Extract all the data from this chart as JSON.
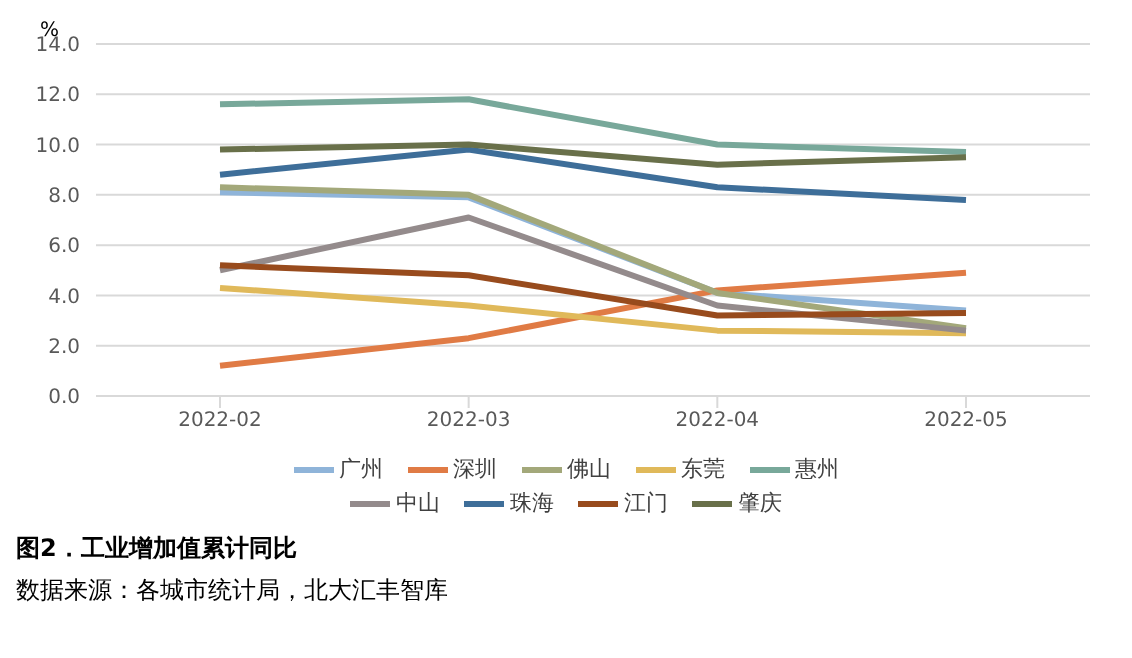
{
  "chart_data": {
    "type": "line",
    "title": "图2．工业增加值累计同比",
    "ylabel": "%",
    "annotations": [
      "数据来源：各城市统计局，北大汇丰智库"
    ],
    "categories": [
      "2022-02",
      "2022-03",
      "2022-04",
      "2022-05"
    ],
    "series": [
      {
        "name": "广州",
        "color": "#8fb4d9",
        "values": [
          8.1,
          7.9,
          4.1,
          3.4
        ]
      },
      {
        "name": "深圳",
        "color": "#e07b45",
        "values": [
          1.2,
          2.3,
          4.2,
          4.9
        ]
      },
      {
        "name": "佛山",
        "color": "#a3a87a",
        "values": [
          8.3,
          8.0,
          4.1,
          2.7
        ]
      },
      {
        "name": "东莞",
        "color": "#e0b95a",
        "values": [
          4.3,
          3.6,
          2.6,
          2.5
        ]
      },
      {
        "name": "惠州",
        "color": "#78a89a",
        "values": [
          11.6,
          11.8,
          10.0,
          9.7
        ]
      },
      {
        "name": "中山",
        "color": "#948b8c",
        "values": [
          5.0,
          7.1,
          3.6,
          2.6
        ]
      },
      {
        "name": "珠海",
        "color": "#3e6e99",
        "values": [
          8.8,
          9.8,
          8.3,
          7.8
        ]
      },
      {
        "name": "江门",
        "color": "#984b1d",
        "values": [
          5.2,
          4.8,
          3.2,
          3.3
        ]
      },
      {
        "name": "肇庆",
        "color": "#69704a",
        "values": [
          9.8,
          10.0,
          9.2,
          9.5
        ]
      }
    ],
    "ylim": [
      0,
      14
    ],
    "yticks": [
      {
        "value": 0,
        "label": "0.0"
      },
      {
        "value": 2,
        "label": "2.0"
      },
      {
        "value": 4,
        "label": "4.0"
      },
      {
        "value": 6,
        "label": "6.0"
      },
      {
        "value": 8,
        "label": "8.0"
      },
      {
        "value": 10,
        "label": "10.0"
      },
      {
        "value": 12,
        "label": "12.0"
      },
      {
        "value": 14,
        "label": "14.0"
      }
    ],
    "grid": "y",
    "legend": "bottom",
    "marker": "none",
    "line_style": "solid"
  }
}
